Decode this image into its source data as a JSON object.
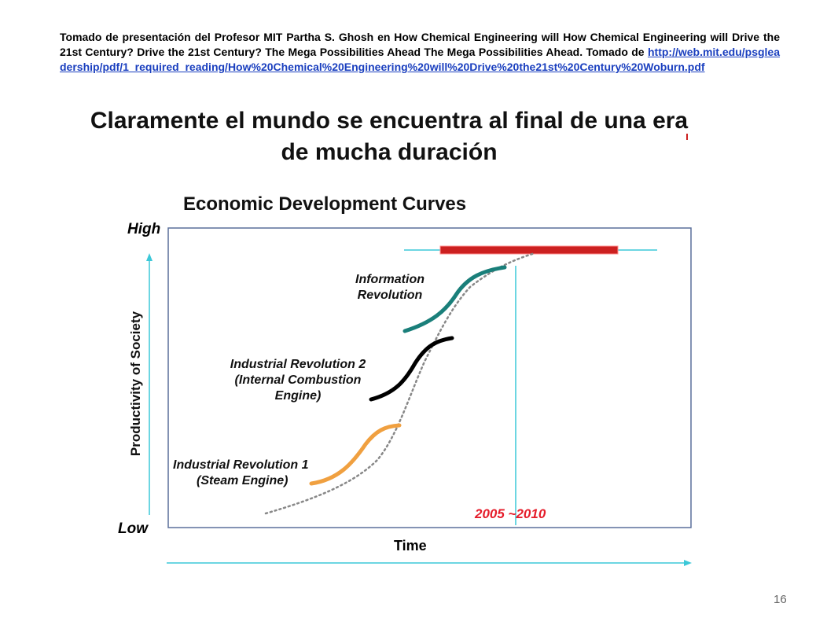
{
  "citation": {
    "text": "Tomado de presentación del Profesor MIT Partha S. Ghosh en How Chemical Engineering will How Chemical Engineering will Drive the 21st Century? Drive the 21st Century? The Mega Possibilities Ahead The Mega Possibilities Ahead. Tomado de ",
    "link": "http://web.mit.edu/psgleadership/pdf/1_required_reading/How%20Chemical%20Engineering%20will%20Drive%20the21st%20Century%20Woburn.pdf"
  },
  "slide_title": "Claramente el mundo se  encuentra al final de una era de mucha duración",
  "diagram": {
    "title": "Economic Development Curves",
    "y_axis_label": "Productivity of Society",
    "y_high": "High",
    "y_low": "Low",
    "x_axis_label": "Time",
    "marker_label": "2005 ~2010",
    "curves": [
      {
        "name": "Information Revolution",
        "line1": "Information",
        "line2": "Revolution",
        "color": "#1a7f7a"
      },
      {
        "name": "Industrial Revolution 2",
        "line1": "Industrial Revolution 2",
        "line2": "(Internal Combustion",
        "line3": "Engine)",
        "color": "#000000"
      },
      {
        "name": "Industrial Revolution 1",
        "line1": "Industrial Revolution 1",
        "line2": "(Steam Engine)",
        "color": "#f0a040"
      }
    ],
    "colors": {
      "frame": "#5a6f9a",
      "axis_arrow": "#3cc8d8",
      "limit_bar": "#cc2020",
      "marker_line": "#3cc8d8",
      "trend_dots": "#888888"
    }
  },
  "page_number": "16"
}
